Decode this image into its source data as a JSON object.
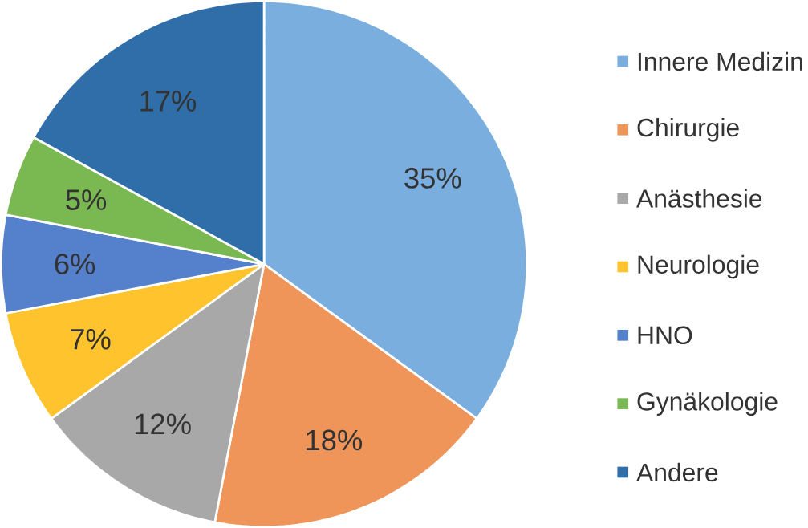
{
  "chart_data": {
    "type": "pie",
    "categories": [
      "Innere Medizin",
      "Chirurgie",
      "Anästhesie",
      "Neurologie",
      "HNO",
      "Gynäkologie",
      "Andere"
    ],
    "values": [
      35,
      18,
      12,
      7,
      6,
      5,
      17
    ],
    "colors": [
      "#79aedf",
      "#f0955a",
      "#a8a8a8",
      "#ffc32e",
      "#5580cc",
      "#7ab852",
      "#2f6ea8"
    ],
    "value_labels": [
      "35%",
      "18%",
      "12%",
      "7%",
      "6%",
      "5%",
      "17%"
    ],
    "legend": "right"
  }
}
